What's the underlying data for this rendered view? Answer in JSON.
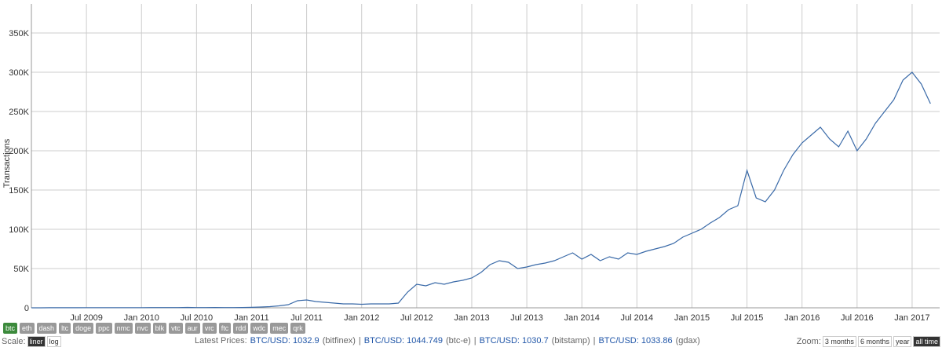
{
  "chart_data": {
    "type": "line",
    "ylabel": "Transactions",
    "color": "#3a6aa8",
    "grid": true,
    "x": [
      "2009-01",
      "2009-02",
      "2009-03",
      "2009-04",
      "2009-05",
      "2009-06",
      "2009-07",
      "2009-08",
      "2009-09",
      "2009-10",
      "2009-11",
      "2009-12",
      "2010-01",
      "2010-02",
      "2010-03",
      "2010-04",
      "2010-05",
      "2010-06",
      "2010-07",
      "2010-08",
      "2010-09",
      "2010-10",
      "2010-11",
      "2010-12",
      "2011-01",
      "2011-02",
      "2011-03",
      "2011-04",
      "2011-05",
      "2011-06",
      "2011-07",
      "2011-08",
      "2011-09",
      "2011-10",
      "2011-11",
      "2011-12",
      "2012-01",
      "2012-02",
      "2012-03",
      "2012-04",
      "2012-05",
      "2012-06",
      "2012-07",
      "2012-08",
      "2012-09",
      "2012-10",
      "2012-11",
      "2012-12",
      "2013-01",
      "2013-02",
      "2013-03",
      "2013-04",
      "2013-05",
      "2013-06",
      "2013-07",
      "2013-08",
      "2013-09",
      "2013-10",
      "2013-11",
      "2013-12",
      "2014-01",
      "2014-02",
      "2014-03",
      "2014-04",
      "2014-05",
      "2014-06",
      "2014-07",
      "2014-08",
      "2014-09",
      "2014-10",
      "2014-11",
      "2014-12",
      "2015-01",
      "2015-02",
      "2015-03",
      "2015-04",
      "2015-05",
      "2015-06",
      "2015-07",
      "2015-08",
      "2015-09",
      "2015-10",
      "2015-11",
      "2015-12",
      "2016-01",
      "2016-02",
      "2016-03",
      "2016-04",
      "2016-05",
      "2016-06",
      "2016-07",
      "2016-08",
      "2016-09",
      "2016-10",
      "2016-11",
      "2016-12",
      "2017-01",
      "2017-02",
      "2017-03"
    ],
    "values": [
      0,
      0,
      100,
      100,
      100,
      100,
      200,
      200,
      200,
      200,
      200,
      200,
      200,
      300,
      300,
      300,
      300,
      500,
      300,
      300,
      400,
      300,
      300,
      400,
      600,
      1000,
      1500,
      2500,
      4000,
      9000,
      10000,
      8000,
      7000,
      6000,
      5000,
      5000,
      4500,
      5000,
      5000,
      5000,
      6000,
      20000,
      30000,
      28000,
      32000,
      30000,
      33000,
      35000,
      38000,
      45000,
      55000,
      60000,
      58000,
      50000,
      52000,
      55000,
      57000,
      60000,
      65000,
      70000,
      62000,
      68000,
      60000,
      65000,
      62000,
      70000,
      68000,
      72000,
      75000,
      78000,
      82000,
      90000,
      95000,
      100000,
      108000,
      115000,
      125000,
      130000,
      175000,
      140000,
      135000,
      150000,
      175000,
      195000,
      210000,
      220000,
      230000,
      215000,
      205000,
      225000,
      200000,
      215000,
      235000,
      250000,
      265000,
      290000,
      300000,
      285000,
      260000
    ],
    "xlim": [
      "2009-01",
      "2017-04"
    ],
    "xticks": [
      {
        "value": "2009-07",
        "label": "Jul 2009"
      },
      {
        "value": "2010-01",
        "label": "Jan 2010"
      },
      {
        "value": "2010-07",
        "label": "Jul 2010"
      },
      {
        "value": "2011-01",
        "label": "Jan 2011"
      },
      {
        "value": "2011-07",
        "label": "Jul 2011"
      },
      {
        "value": "2012-01",
        "label": "Jan 2012"
      },
      {
        "value": "2012-07",
        "label": "Jul 2012"
      },
      {
        "value": "2013-01",
        "label": "Jan 2013"
      },
      {
        "value": "2013-07",
        "label": "Jul 2013"
      },
      {
        "value": "2014-01",
        "label": "Jan 2014"
      },
      {
        "value": "2014-07",
        "label": "Jul 2014"
      },
      {
        "value": "2015-01",
        "label": "Jan 2015"
      },
      {
        "value": "2015-07",
        "label": "Jul 2015"
      },
      {
        "value": "2016-01",
        "label": "Jan 2016"
      },
      {
        "value": "2016-07",
        "label": "Jul 2016"
      },
      {
        "value": "2017-01",
        "label": "Jan 2017"
      }
    ],
    "ylim": [
      0,
      387000
    ],
    "yticks": [
      0,
      {
        "value": 50000,
        "label": "50K"
      },
      {
        "value": 100000,
        "label": "100K"
      },
      {
        "value": 150000,
        "label": "150K"
      },
      {
        "value": 200000,
        "label": "200K"
      },
      {
        "value": 250000,
        "label": "250K"
      },
      {
        "value": 300000,
        "label": "300K"
      },
      {
        "value": 350000,
        "label": "350K"
      }
    ]
  },
  "ui": {
    "coins": [
      "btc",
      "eth",
      "dash",
      "ltc",
      "doge",
      "ppc",
      "nmc",
      "nvc",
      "blk",
      "vtc",
      "aur",
      "vrc",
      "ftc",
      "rdd",
      "wdc",
      "mec",
      "qrk"
    ],
    "scale_label": "Scale:",
    "scale_options": [
      "liner",
      "log"
    ],
    "prices_label": "Latest Prices:",
    "separator": "|",
    "prices": [
      {
        "pair": "BTC/USD: 1032.9",
        "source": "(bitfinex)"
      },
      {
        "pair": "BTC/USD: 1044.749",
        "source": "(btc-e)"
      },
      {
        "pair": "BTC/USD: 1030.7",
        "source": "(bitstamp)"
      },
      {
        "pair": "BTC/USD: 1033.86",
        "source": "(gdax)"
      }
    ],
    "zoom_label": "Zoom:",
    "zoom_options": [
      "3 months",
      "6 months",
      "year",
      "all time"
    ]
  }
}
